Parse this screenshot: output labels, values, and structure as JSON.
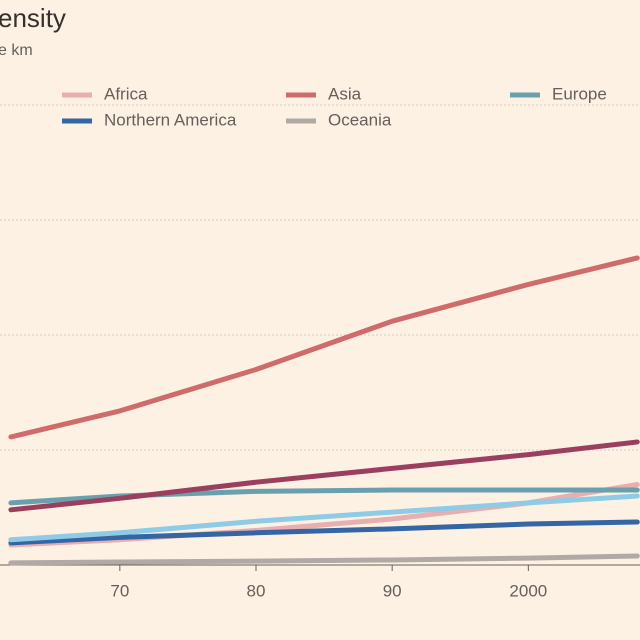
{
  "chart_data": {
    "type": "line",
    "title": "ensity",
    "subtitle": "e km",
    "x": [
      1962,
      1970,
      1980,
      1990,
      2000,
      2008
    ],
    "xlim": [
      1961.2,
      2008.2
    ],
    "xticks": [
      {
        "value": 1970,
        "label": "70"
      },
      {
        "value": 1980,
        "label": "80"
      },
      {
        "value": 1990,
        "label": "90"
      },
      2000
    ],
    "ylim": [
      0,
      200
    ],
    "yticks": [
      0,
      50,
      100,
      150,
      200
    ],
    "grid": true,
    "series": [
      {
        "name": "Africa",
        "color": "#e8aeb0",
        "values": [
          8.7,
          11,
          15,
          20,
          27,
          35
        ]
      },
      {
        "name": "Asia",
        "color": "#d06b6b",
        "values": [
          55.7,
          67,
          85,
          106,
          122,
          133.5
        ]
      },
      {
        "name": "Europe",
        "color": "#6aa0ad",
        "values": [
          27,
          30,
          32,
          32.6,
          32.6,
          32.6
        ]
      },
      {
        "name": "Northern America",
        "color": "#3465a4",
        "values": [
          9.6,
          12,
          14,
          15.7,
          17.8,
          18.7
        ]
      },
      {
        "name": "Oceania",
        "color": "#b0a9a4",
        "values": [
          0.9,
          1.3,
          1.7,
          2.2,
          3,
          3.9
        ]
      },
      {
        "color": "#9b3f5f",
        "values": [
          24,
          29,
          36,
          42,
          48,
          53.5
        ]
      },
      {
        "color": "#8ecbe6",
        "values": [
          11,
          14,
          19,
          23,
          27,
          30
        ]
      }
    ]
  }
}
